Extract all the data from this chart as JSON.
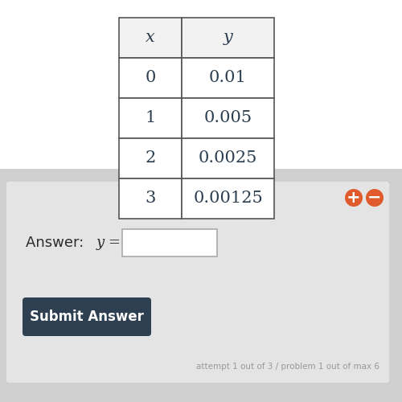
{
  "x_values": [
    "x",
    "0",
    "1",
    "2",
    "3"
  ],
  "y_values": [
    "y",
    "0.01",
    "0.005",
    "0.0025",
    "0.00125"
  ],
  "header_bg": "#f2f2f2",
  "table_border_color": "#555555",
  "cell_text_color": "#2c3e50",
  "body_bg": "#ffffff",
  "button_bg": "#2e3f52",
  "button_text": "Submit Answer",
  "answer_normal": "Answer:  ",
  "answer_italic": "y =",
  "attempt_text": "attempt 1 out of 3 / problem 1 out of max 6",
  "page_bg": "#d0d0d0",
  "panel_bg": "#e4e4e4",
  "panel_border": "#cccccc",
  "plus_minus_color": "#e05a2b"
}
